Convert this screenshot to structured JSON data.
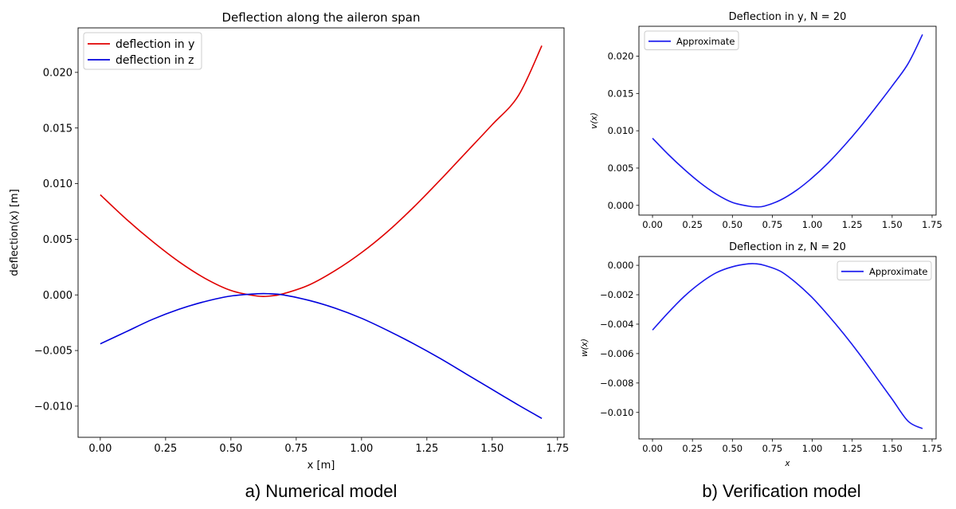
{
  "chart_data": [
    {
      "type": "line",
      "title": "Deflection along the aileron span",
      "xlabel": "x [m]",
      "ylabel": "deflection(x) [m]",
      "xlim": [
        -0.085,
        1.775
      ],
      "ylim": [
        -0.0128,
        0.024
      ],
      "xticks": [
        0.0,
        0.25,
        0.5,
        0.75,
        1.0,
        1.25,
        1.5,
        1.75
      ],
      "xtick_labels": [
        "0.00",
        "0.25",
        "0.50",
        "0.75",
        "1.00",
        "1.25",
        "1.50",
        "1.75"
      ],
      "yticks": [
        -0.01,
        -0.005,
        0.0,
        0.005,
        0.01,
        0.015,
        0.02
      ],
      "ytick_labels": [
        "−0.010",
        "−0.005",
        "0.000",
        "0.005",
        "0.010",
        "0.015",
        "0.020"
      ],
      "grid": false,
      "legend_position": "top-left",
      "series": [
        {
          "name": "deflection in y",
          "color": "#e00000",
          "x": [
            0.0,
            0.1,
            0.2,
            0.3,
            0.4,
            0.5,
            0.6,
            0.65,
            0.7,
            0.8,
            0.9,
            1.0,
            1.1,
            1.2,
            1.3,
            1.4,
            1.5,
            1.6,
            1.69
          ],
          "y": [
            0.009,
            0.0068,
            0.0048,
            0.003,
            0.0015,
            0.0004,
            -0.0001,
            -0.0001,
            0.0001,
            0.0009,
            0.0022,
            0.0038,
            0.0057,
            0.0079,
            0.0103,
            0.0128,
            0.0153,
            0.0179,
            0.0224
          ]
        },
        {
          "name": "deflection in z",
          "color": "#0000dd",
          "x": [
            0.0,
            0.1,
            0.2,
            0.3,
            0.4,
            0.5,
            0.6,
            0.65,
            0.7,
            0.8,
            0.9,
            1.0,
            1.1,
            1.2,
            1.3,
            1.4,
            1.5,
            1.6,
            1.69
          ],
          "y": [
            -0.0044,
            -0.0033,
            -0.0022,
            -0.0013,
            -0.0006,
            -0.0001,
            0.0001,
            0.0001,
            0.0,
            -0.0005,
            -0.0012,
            -0.0021,
            -0.0032,
            -0.0044,
            -0.0057,
            -0.0071,
            -0.0085,
            -0.0099,
            -0.0111
          ]
        }
      ]
    },
    {
      "type": "line",
      "title": "Deflection in y, N = 20",
      "xlabel": "",
      "ylabel": "v(x)",
      "xlim": [
        -0.085,
        1.775
      ],
      "ylim": [
        -0.0013,
        0.024
      ],
      "xticks": [
        0.0,
        0.25,
        0.5,
        0.75,
        1.0,
        1.25,
        1.5,
        1.75
      ],
      "xtick_labels": [
        "0.00",
        "0.25",
        "0.50",
        "0.75",
        "1.00",
        "1.25",
        "1.50",
        "1.75"
      ],
      "yticks": [
        0.0,
        0.005,
        0.01,
        0.015,
        0.02
      ],
      "ytick_labels": [
        "0.000",
        "0.005",
        "0.010",
        "0.015",
        "0.020"
      ],
      "grid": false,
      "legend_position": "top-left",
      "series": [
        {
          "name": "Approximate",
          "color": "#1a1aee",
          "x": [
            0.0,
            0.1,
            0.2,
            0.3,
            0.4,
            0.5,
            0.6,
            0.65,
            0.7,
            0.8,
            0.9,
            1.0,
            1.1,
            1.2,
            1.3,
            1.4,
            1.5,
            1.6,
            1.69
          ],
          "y": [
            0.009,
            0.0068,
            0.0048,
            0.003,
            0.0015,
            0.0004,
            -0.0001,
            -0.0002,
            -0.0001,
            0.0007,
            0.002,
            0.0037,
            0.0057,
            0.008,
            0.0105,
            0.0132,
            0.016,
            0.019,
            0.0229
          ]
        }
      ]
    },
    {
      "type": "line",
      "title": "Deflection in z, N = 20",
      "xlabel": "x",
      "ylabel": "w(x)",
      "xlim": [
        -0.085,
        1.775
      ],
      "ylim": [
        -0.0118,
        0.0006
      ],
      "xticks": [
        0.0,
        0.25,
        0.5,
        0.75,
        1.0,
        1.25,
        1.5,
        1.75
      ],
      "xtick_labels": [
        "0.00",
        "0.25",
        "0.50",
        "0.75",
        "1.00",
        "1.25",
        "1.50",
        "1.75"
      ],
      "yticks": [
        -0.01,
        -0.008,
        -0.006,
        -0.004,
        -0.002,
        0.0
      ],
      "ytick_labels": [
        "−0.010",
        "−0.008",
        "−0.006",
        "−0.004",
        "−0.002",
        "0.000"
      ],
      "grid": false,
      "legend_position": "top-right",
      "series": [
        {
          "name": "Approximate",
          "color": "#1a1aee",
          "x": [
            0.0,
            0.1,
            0.2,
            0.3,
            0.4,
            0.5,
            0.6,
            0.65,
            0.7,
            0.8,
            0.9,
            1.0,
            1.1,
            1.2,
            1.3,
            1.4,
            1.5,
            1.6,
            1.69
          ],
          "y": [
            -0.0044,
            -0.0032,
            -0.0021,
            -0.0012,
            -0.0005,
            -0.0001,
            0.0001,
            0.0001,
            0.0,
            -0.0004,
            -0.0012,
            -0.0022,
            -0.0034,
            -0.0047,
            -0.0061,
            -0.0076,
            -0.0091,
            -0.0106,
            -0.0111
          ]
        }
      ]
    }
  ],
  "captions": {
    "a": "a) Numerical model",
    "b": "b) Verification model"
  }
}
